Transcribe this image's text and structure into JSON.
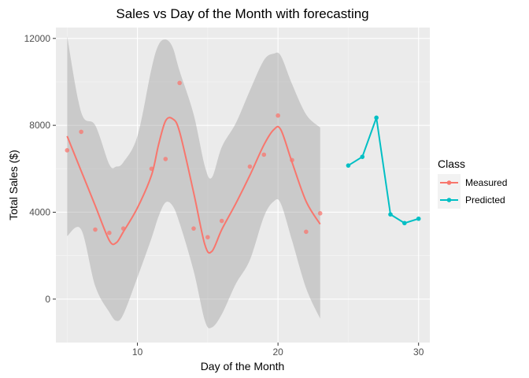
{
  "chart_data": {
    "type": "line",
    "title": "Sales vs Day of the Month with forecasting",
    "xlabel": "Day of the Month",
    "ylabel": "Total Sales ($)",
    "xlim": [
      4.2,
      30.8
    ],
    "ylim": [
      -2000,
      12500
    ],
    "x_ticks": [
      10,
      20,
      30
    ],
    "y_ticks": [
      0,
      4000,
      8000,
      12000
    ],
    "y_tick_labels": [
      "0",
      "4000",
      "8000",
      "12000"
    ],
    "grid": true,
    "legend": {
      "title": "Class",
      "position": "right",
      "entries": [
        {
          "name": "Measured",
          "color": "#F8766D"
        },
        {
          "name": "Predicted",
          "color": "#00BFC4"
        }
      ]
    },
    "measured_points": {
      "x": [
        5,
        6,
        7,
        8,
        9,
        11,
        12,
        13,
        14,
        15,
        16,
        18,
        19,
        20,
        21,
        22,
        23
      ],
      "y": [
        6850,
        7700,
        3200,
        3050,
        3250,
        6000,
        6450,
        9950,
        3250,
        2850,
        3600,
        6100,
        6650,
        8450,
        6400,
        3100,
        3950
      ]
    },
    "measured_smooth": {
      "x": [
        5,
        6,
        7,
        8,
        8.5,
        9,
        10,
        11,
        11.5,
        12,
        12.5,
        13,
        14,
        14.8,
        15.3,
        16,
        17,
        18,
        19,
        19.7,
        20.2,
        21,
        22,
        23
      ],
      "y": [
        7500,
        5900,
        4300,
        2700,
        2600,
        3100,
        4200,
        5700,
        7100,
        8200,
        8300,
        7700,
        4900,
        2500,
        2200,
        3200,
        4400,
        5700,
        7100,
        7800,
        7800,
        6300,
        4500,
        3450
      ]
    },
    "confidence_band": {
      "upper": [
        12100,
        8600,
        8000,
        6200,
        6100,
        6300,
        7500,
        10600,
        11700,
        11950,
        11600,
        10500,
        8500,
        6100,
        5600,
        7000,
        8100,
        9600,
        11000,
        11300,
        11200,
        9900,
        8500,
        7900
      ],
      "lower": [
        2900,
        3200,
        600,
        -600,
        -1000,
        -700,
        1000,
        2800,
        3800,
        4450,
        4300,
        3500,
        1300,
        -1000,
        -1300,
        -700,
        700,
        1800,
        3800,
        4500,
        4400,
        2700,
        500,
        -900
      ]
    },
    "predicted": {
      "x": [
        25,
        26,
        27,
        28,
        29,
        30
      ],
      "y": [
        6150,
        6550,
        8350,
        3900,
        3500,
        3700
      ]
    }
  }
}
